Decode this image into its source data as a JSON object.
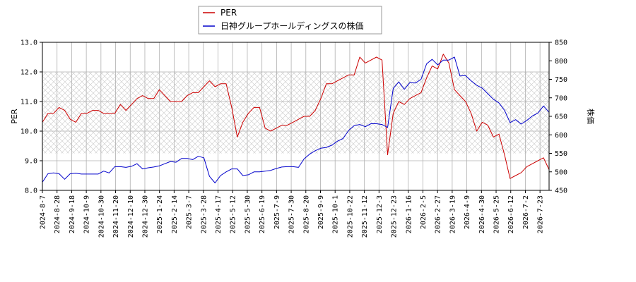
{
  "chart_data": {
    "type": "line",
    "legend": {
      "placement": "top-center",
      "items": [
        "PER",
        "日神グループホールディングスの株価"
      ]
    },
    "y_left": {
      "label": "PER",
      "range": [
        8.0,
        13.0
      ],
      "ticks": [
        "8.0",
        "9.0",
        "10.0",
        "11.0",
        "12.0",
        "13.0"
      ]
    },
    "y_right": {
      "label": "株価",
      "range": [
        450,
        850
      ],
      "ticks": [
        "450",
        "500",
        "550",
        "600",
        "650",
        "700",
        "750",
        "800",
        "850"
      ]
    },
    "x_ticks": [
      "2024-8-7",
      "2024-8-28",
      "2024-9-18",
      "2024-10-9",
      "2024-10-30",
      "2024-11-20",
      "2024-12-10",
      "2024-12-30",
      "2025-1-24",
      "2025-2-14",
      "2025-3-7",
      "2025-3-28",
      "2025-4-17",
      "2025-5-12",
      "2025-5-30",
      "2025-6-19",
      "2025-7-9",
      "2025-7-30",
      "2025-8-20",
      "2025-9-9",
      "2025-10-1",
      "2025-10-22",
      "2025-11-12",
      "2025-12-3",
      "2025-12-23",
      "2026-1-16",
      "2026-2-5",
      "2026-2-27",
      "2026-3-19",
      "2026-4-9",
      "2026-4-30",
      "2026-5-25",
      "2026-6-12",
      "2026-7-2",
      "2026-7-23"
    ],
    "hatched_band": [
      9.25,
      12.0
    ],
    "grid": true,
    "series": [
      {
        "name": "PER",
        "color": "#cc0000",
        "axis": "left",
        "values": [
          10.3,
          10.6,
          10.6,
          10.8,
          10.7,
          10.4,
          10.3,
          10.6,
          10.6,
          10.7,
          10.7,
          10.6,
          10.6,
          10.6,
          10.9,
          10.7,
          10.9,
          11.1,
          11.2,
          11.1,
          11.1,
          11.4,
          11.2,
          11.0,
          11.0,
          11.0,
          11.2,
          11.3,
          11.3,
          11.5,
          11.7,
          11.5,
          11.6,
          11.6,
          10.8,
          9.8,
          10.3,
          10.6,
          10.8,
          10.8,
          10.1,
          10.0,
          10.1,
          10.2,
          10.2,
          10.3,
          10.4,
          10.5,
          10.5,
          10.7,
          11.1,
          11.6,
          11.6,
          11.7,
          11.8,
          11.9,
          11.9,
          12.5,
          12.3,
          12.4,
          12.5,
          12.4,
          9.2,
          10.6,
          11.0,
          10.9,
          11.1,
          11.2,
          11.3,
          11.8,
          12.2,
          12.1,
          12.6,
          12.3,
          11.4,
          11.2,
          11.0,
          10.6,
          10.0,
          10.3,
          10.2,
          9.8,
          9.9,
          9.2,
          8.4,
          8.5,
          8.6,
          8.8,
          8.9,
          9.0,
          9.1,
          8.7
        ]
      },
      {
        "name": "日神グループホールディングスの株価",
        "color": "#0000cc",
        "axis": "right",
        "values": [
          472,
          495,
          497,
          495,
          480,
          495,
          496,
          494,
          494,
          494,
          494,
          502,
          497,
          514,
          514,
          512,
          515,
          522,
          508,
          511,
          513,
          516,
          522,
          528,
          526,
          536,
          536,
          533,
          542,
          538,
          488,
          470,
          490,
          500,
          508,
          508,
          490,
          492,
          500,
          500,
          502,
          504,
          509,
          513,
          514,
          514,
          512,
          535,
          548,
          557,
          564,
          566,
          572,
          583,
          590,
          612,
          625,
          628,
          622,
          630,
          630,
          628,
          620,
          725,
          743,
          723,
          741,
          740,
          750,
          792,
          804,
          789,
          802,
          802,
          810,
          759,
          760,
          746,
          734,
          726,
          711,
          696,
          686,
          666,
          633,
          641,
          629,
          639,
          651,
          659,
          678,
          661
        ]
      }
    ]
  }
}
